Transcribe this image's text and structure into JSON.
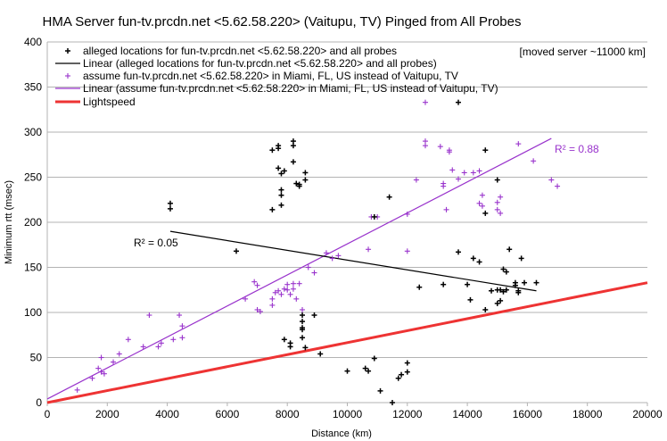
{
  "chart_data": {
    "type": "scatter",
    "title": "HMA Server fun-tv.prcdn.net <5.62.58.220> (Vaitupu, TV) Pinged from All Probes",
    "xlabel": "Distance (km)",
    "ylabel": "Minimum rtt (msec)",
    "xlim": [
      0,
      20000
    ],
    "ylim": [
      0,
      400
    ],
    "xticks": [
      0,
      2000,
      4000,
      6000,
      8000,
      10000,
      12000,
      14000,
      16000,
      18000,
      20000
    ],
    "yticks": [
      0,
      50,
      100,
      150,
      200,
      250,
      300,
      350,
      400
    ],
    "grid": "horizontal",
    "legend_position": "top",
    "note": "[moved server ~11000 km]",
    "legend": [
      "alleged locations for fun-tv.prcdn.net <5.62.58.220> and all probes",
      "Linear (alleged locations for fun-tv.prcdn.net <5.62.58.220> and all probes)",
      "assume fun-tv.prcdn.net <5.62.58.220> in Miami, FL, US instead of Vaitupu, TV",
      "Linear (assume fun-tv.prcdn.net <5.62.58.220> in Miami, FL, US instead of Vaitupu, TV)",
      "Lightspeed"
    ],
    "r2_labels": [
      "R² = 0.05",
      "R² = 0.88"
    ],
    "colors": {
      "alleged": "#000000",
      "miami": "#9933cc",
      "lightspeed": "#ee3333",
      "grid": "#b3b3b3",
      "axis": "#b3b3b3"
    },
    "series": [
      {
        "name": "alleged locations for fun-tv.prcdn.net <5.62.58.220> and all probes",
        "points": [
          [
            4100,
            221
          ],
          [
            4100,
            215
          ],
          [
            6300,
            168
          ],
          [
            7500,
            280
          ],
          [
            7500,
            214
          ],
          [
            7700,
            285
          ],
          [
            7700,
            282
          ],
          [
            7700,
            260
          ],
          [
            7800,
            254
          ],
          [
            7800,
            236
          ],
          [
            7800,
            230
          ],
          [
            7800,
            219
          ],
          [
            7900,
            257
          ],
          [
            8200,
            290
          ],
          [
            8200,
            285
          ],
          [
            8200,
            267
          ],
          [
            8300,
            243
          ],
          [
            8400,
            240
          ],
          [
            8400,
            242
          ],
          [
            8600,
            255
          ],
          [
            8600,
            247
          ],
          [
            7900,
            70
          ],
          [
            8100,
            66
          ],
          [
            8100,
            62
          ],
          [
            8500,
            97
          ],
          [
            8500,
            90
          ],
          [
            8500,
            83
          ],
          [
            8500,
            81
          ],
          [
            8500,
            72
          ],
          [
            8600,
            61
          ],
          [
            8900,
            97
          ],
          [
            9100,
            54
          ],
          [
            10000,
            35
          ],
          [
            10600,
            38
          ],
          [
            10700,
            35
          ],
          [
            10900,
            206
          ],
          [
            10900,
            49
          ],
          [
            11100,
            13
          ],
          [
            11400,
            228
          ],
          [
            11500,
            0
          ],
          [
            11700,
            27
          ],
          [
            11800,
            31
          ],
          [
            12000,
            44
          ],
          [
            12000,
            34
          ],
          [
            12400,
            128
          ],
          [
            13200,
            131
          ],
          [
            13700,
            333
          ],
          [
            13700,
            167
          ],
          [
            14000,
            131
          ],
          [
            14100,
            114
          ],
          [
            14200,
            160
          ],
          [
            14400,
            156
          ],
          [
            14600,
            280
          ],
          [
            14600,
            210
          ],
          [
            14600,
            103
          ],
          [
            14800,
            124
          ],
          [
            15000,
            247
          ],
          [
            15000,
            125
          ],
          [
            15000,
            110
          ],
          [
            15100,
            113
          ],
          [
            15100,
            125
          ],
          [
            15200,
            148
          ],
          [
            15200,
            123
          ],
          [
            15300,
            125
          ],
          [
            15300,
            145
          ],
          [
            15400,
            170
          ],
          [
            15600,
            133
          ],
          [
            15600,
            130
          ],
          [
            15700,
            122
          ],
          [
            15700,
            124
          ],
          [
            15800,
            160
          ],
          [
            15900,
            133
          ],
          [
            16300,
            133
          ]
        ]
      },
      {
        "name": "assume fun-tv.prcdn.net <5.62.58.220> in Miami, FL, US instead of Vaitupu, TV",
        "points": [
          [
            1000,
            14
          ],
          [
            1500,
            27
          ],
          [
            1700,
            38
          ],
          [
            1800,
            34
          ],
          [
            1800,
            50
          ],
          [
            1900,
            32
          ],
          [
            2200,
            45
          ],
          [
            2400,
            54
          ],
          [
            2700,
            70
          ],
          [
            3200,
            62
          ],
          [
            3400,
            97
          ],
          [
            3700,
            62
          ],
          [
            3800,
            66
          ],
          [
            4200,
            70
          ],
          [
            4400,
            97
          ],
          [
            4500,
            72
          ],
          [
            4500,
            85
          ],
          [
            6600,
            115
          ],
          [
            6900,
            134
          ],
          [
            7000,
            130
          ],
          [
            7000,
            103
          ],
          [
            7100,
            101
          ],
          [
            7500,
            115
          ],
          [
            7500,
            108
          ],
          [
            7600,
            122
          ],
          [
            7700,
            124
          ],
          [
            7800,
            120
          ],
          [
            7900,
            126
          ],
          [
            8000,
            125
          ],
          [
            8000,
            131
          ],
          [
            8100,
            120
          ],
          [
            8200,
            126
          ],
          [
            8200,
            132
          ],
          [
            8300,
            115
          ],
          [
            8400,
            132
          ],
          [
            8500,
            103
          ],
          [
            8700,
            150
          ],
          [
            8900,
            144
          ],
          [
            9300,
            166
          ],
          [
            9500,
            160
          ],
          [
            9700,
            163
          ],
          [
            10700,
            170
          ],
          [
            10800,
            206
          ],
          [
            11000,
            206
          ],
          [
            12000,
            168
          ],
          [
            12000,
            209
          ],
          [
            12300,
            247
          ],
          [
            12600,
            290
          ],
          [
            12600,
            333
          ],
          [
            12600,
            285
          ],
          [
            13100,
            284
          ],
          [
            13200,
            240
          ],
          [
            13200,
            243
          ],
          [
            13300,
            214
          ],
          [
            13400,
            280
          ],
          [
            13400,
            278
          ],
          [
            13500,
            258
          ],
          [
            13700,
            248
          ],
          [
            13900,
            255
          ],
          [
            14200,
            255
          ],
          [
            14400,
            221
          ],
          [
            14400,
            257
          ],
          [
            14500,
            218
          ],
          [
            14500,
            230
          ],
          [
            15000,
            214
          ],
          [
            15000,
            222
          ],
          [
            15100,
            210
          ],
          [
            15100,
            228
          ],
          [
            15700,
            287
          ],
          [
            16200,
            268
          ],
          [
            16800,
            247
          ],
          [
            17000,
            240
          ]
        ]
      }
    ],
    "trendlines": [
      {
        "name": "Linear (alleged locations for fun-tv.prcdn.net <5.62.58.220> and all probes)",
        "x": [
          4100,
          16300
        ],
        "y": [
          190,
          124
        ]
      },
      {
        "name": "Linear (assume fun-tv.prcdn.net <5.62.58.220> in Miami, FL, US instead of Vaitupu, TV)",
        "x": [
          0,
          16800
        ],
        "y": [
          4,
          293
        ]
      }
    ],
    "lightspeed": {
      "name": "Lightspeed",
      "x": [
        0,
        20000
      ],
      "y": [
        0,
        133
      ]
    }
  }
}
